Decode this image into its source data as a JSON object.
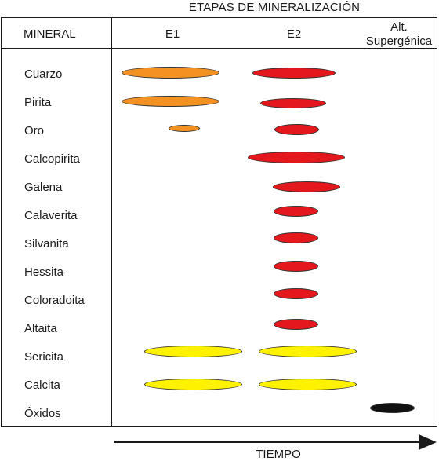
{
  "title": "ETAPAS DE MINERALIZACIÓN",
  "header": {
    "mineral": "MINERAL",
    "e1": "E1",
    "e2": "E2",
    "alt_line1": "Alt.",
    "alt_line2": "Supergénica"
  },
  "minerals": [
    "Cuarzo",
    "Pirita",
    "Oro",
    "Calcopirita",
    "Galena",
    "Calaverita",
    "Silvanita",
    "Hessita",
    "Coloradoita",
    "Altaita",
    "Sericita",
    "Calcita",
    "Óxidos"
  ],
  "colors": {
    "e1": "#f39223",
    "e2": "#e4171d",
    "gangue": "#fff200",
    "supergene": "#111111"
  },
  "x_axis_label": "TIEMPO"
}
